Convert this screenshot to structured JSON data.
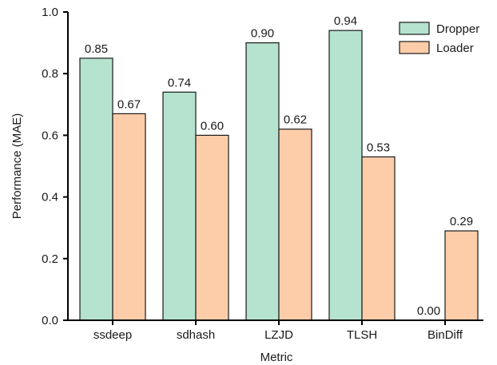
{
  "chart_data": {
    "type": "bar",
    "title": "",
    "xlabel": "Metric",
    "ylabel": "Performance (MAE)",
    "ylim": [
      0,
      1.0
    ],
    "yticks": [
      "0.0",
      "0.2",
      "0.4",
      "0.6",
      "0.8",
      "1.0"
    ],
    "categories": [
      "ssdeep",
      "sdhash",
      "LZJD",
      "TLSH",
      "BinDiff"
    ],
    "series": [
      {
        "name": "Dropper",
        "color": "#b5e3cf",
        "values": [
          0.85,
          0.74,
          0.9,
          0.94,
          0.0
        ],
        "labels": [
          "0.85",
          "0.74",
          "0.90",
          "0.94",
          "0.00"
        ]
      },
      {
        "name": "Loader",
        "color": "#fdcdaa",
        "values": [
          0.67,
          0.6,
          0.62,
          0.53,
          0.29
        ],
        "labels": [
          "0.67",
          "0.60",
          "0.62",
          "0.53",
          "0.29"
        ]
      }
    ],
    "legend": "top-right",
    "grid": false
  }
}
